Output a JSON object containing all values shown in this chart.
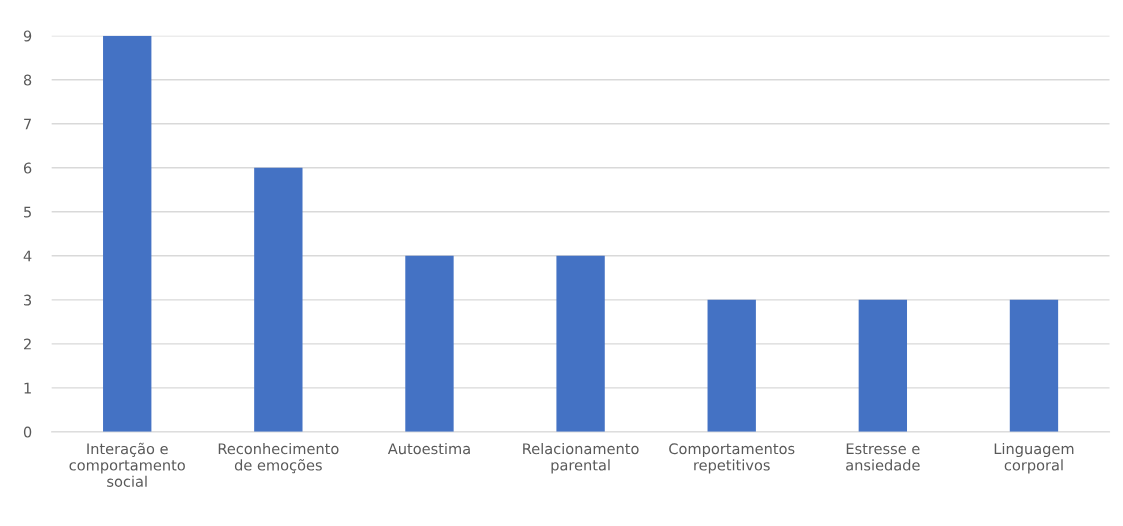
{
  "chart_data": {
    "type": "bar",
    "categories": [
      "Interação e\ncomportamento\nsocial",
      "Reconhecimento\nde emoções",
      "Autoestima",
      "Relacionamento\nparental",
      "Comportamentos\nrepetitivos",
      "Estresse e\nansiedade",
      "Linguagem\ncorporal"
    ],
    "values": [
      9,
      6,
      4,
      4,
      3,
      3,
      3
    ],
    "color": "#4472c4",
    "ylim": [
      0,
      9
    ],
    "yticks": [
      0,
      1,
      2,
      3,
      4,
      5,
      6,
      7,
      8,
      9
    ],
    "grid": "y"
  }
}
